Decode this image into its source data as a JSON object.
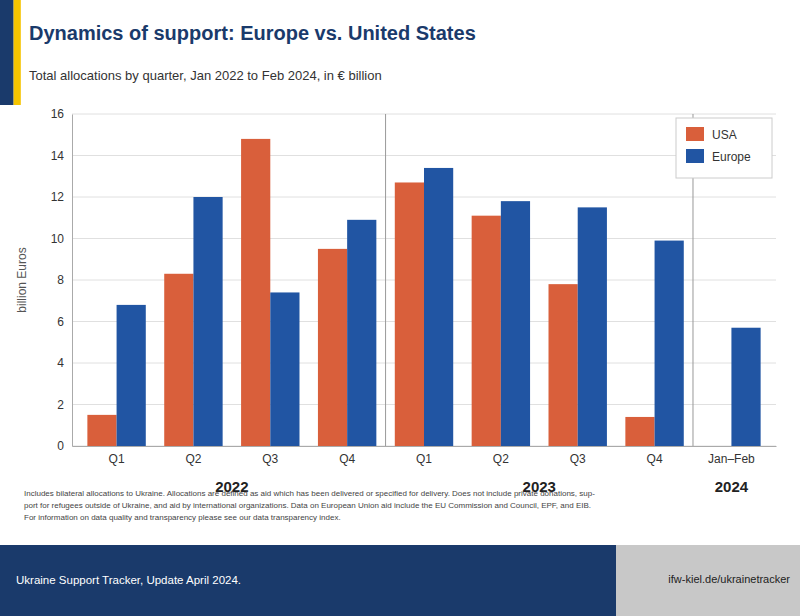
{
  "chart_data": {
    "type": "bar",
    "title": "Dynamics of support: Europe vs. United States",
    "subtitle": "Total allocations by quarter, Jan 2022 to Feb 2024, in € billion",
    "ylabel": "billion Euros",
    "categories": [
      "Q1",
      "Q2",
      "Q3",
      "Q4",
      "Q1",
      "Q2",
      "Q3",
      "Q4",
      "Jan–Feb"
    ],
    "series": [
      {
        "name": "USA",
        "color": "#D95F3B",
        "values": [
          1.5,
          8.3,
          14.8,
          9.5,
          12.7,
          11.1,
          7.8,
          1.4,
          null
        ]
      },
      {
        "name": "Europe",
        "color": "#2155A3",
        "values": [
          6.8,
          12.0,
          7.4,
          10.9,
          13.4,
          11.8,
          11.5,
          9.9,
          5.7
        ]
      }
    ],
    "ylim": [
      0,
      16
    ],
    "yticks": [
      0,
      2,
      4,
      6,
      8,
      10,
      12,
      14,
      16
    ],
    "grid": true,
    "legend": "upper right",
    "annotations": [
      {
        "text": "2022",
        "x": 1.5
      },
      {
        "text": "2023",
        "x": 5.5
      },
      {
        "text": "2024",
        "x": 8.0
      }
    ],
    "vlines": [
      3.5,
      7.5
    ],
    "note": "Includes bilateral allocations to Ukraine. Allocations are defined as aid which has been delivered or specified for delivery. Does not include private donations, sup-\nport for refugees outside of Ukraine, and aid by international organizations. Data on European Union aid include the EU Commission and Council, EPF, and EIB.\nFor information on data quality and transparency please see our data transparency index.",
    "source": "Ukraine Support Tracker, Update April 2024.",
    "source_url": "ifw-kiel.de/ukrainetracker"
  }
}
